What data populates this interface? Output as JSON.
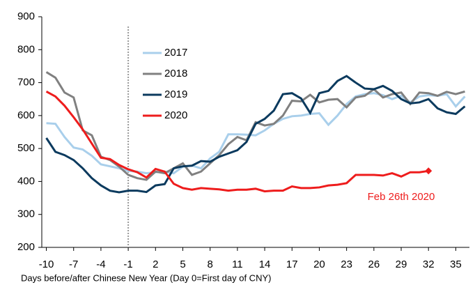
{
  "chart_data": {
    "type": "line",
    "x_label": "Days before/after Chinese New Year (Day 0=First day of CNY)",
    "x": [
      -10,
      -9,
      -8,
      -7,
      -6,
      -5,
      -4,
      -3,
      -2,
      -1,
      0,
      1,
      2,
      3,
      4,
      5,
      6,
      7,
      8,
      9,
      10,
      11,
      12,
      13,
      14,
      15,
      16,
      17,
      18,
      19,
      20,
      21,
      22,
      23,
      24,
      25,
      26,
      27,
      28,
      29,
      30,
      31,
      32,
      33,
      34,
      35,
      36
    ],
    "series": [
      {
        "name": "2017",
        "color": "#a9cfeb",
        "values": [
          577,
          575,
          535,
          503,
          497,
          478,
          452,
          446,
          440,
          432,
          430,
          425,
          428,
          430,
          425,
          445,
          448,
          440,
          470,
          490,
          543,
          543,
          542,
          540,
          555,
          575,
          590,
          598,
          600,
          605,
          607,
          572,
          600,
          635,
          658,
          665,
          668,
          662,
          650,
          660,
          640,
          658,
          662,
          660,
          665,
          628,
          658
        ]
      },
      {
        "name": "2018",
        "color": "#808080",
        "values": [
          732,
          715,
          670,
          655,
          555,
          540,
          475,
          465,
          445,
          420,
          410,
          405,
          430,
          425,
          440,
          455,
          420,
          430,
          455,
          480,
          513,
          535,
          525,
          580,
          570,
          575,
          600,
          645,
          643,
          663,
          640,
          648,
          650,
          625,
          655,
          660,
          680,
          655,
          665,
          670,
          635,
          670,
          668,
          660,
          672,
          665,
          673
        ]
      },
      {
        "name": "2019",
        "color": "#0b3a5e",
        "values": [
          532,
          490,
          480,
          465,
          440,
          410,
          388,
          372,
          367,
          372,
          372,
          368,
          388,
          392,
          440,
          446,
          448,
          462,
          460,
          475,
          485,
          495,
          520,
          575,
          590,
          615,
          665,
          668,
          652,
          608,
          668,
          675,
          705,
          720,
          700,
          682,
          680,
          690,
          675,
          650,
          637,
          640,
          650,
          622,
          610,
          605,
          628
        ]
      },
      {
        "name": "2020",
        "color": "#ee1c1c",
        "values": [
          673,
          658,
          630,
          595,
          558,
          515,
          472,
          468,
          450,
          437,
          428,
          412,
          438,
          430,
          393,
          380,
          375,
          380,
          378,
          376,
          372,
          375,
          375,
          378,
          370,
          372,
          372,
          385,
          380,
          380,
          382,
          388,
          390,
          395,
          420,
          420,
          420,
          418,
          425,
          415,
          428,
          428,
          432,
          null,
          null,
          null,
          null
        ]
      }
    ],
    "annotation": "Feb 26th 2020",
    "vline_x": -1,
    "xlim": [
      -10.5,
      36.5
    ],
    "xticks": [
      -10,
      -7,
      -4,
      -1,
      2,
      5,
      8,
      11,
      14,
      17,
      20,
      23,
      26,
      29,
      32,
      35
    ],
    "ylim": [
      200,
      900
    ],
    "yticks": [
      200,
      300,
      400,
      500,
      600,
      700,
      800,
      900
    ],
    "grid": false
  }
}
